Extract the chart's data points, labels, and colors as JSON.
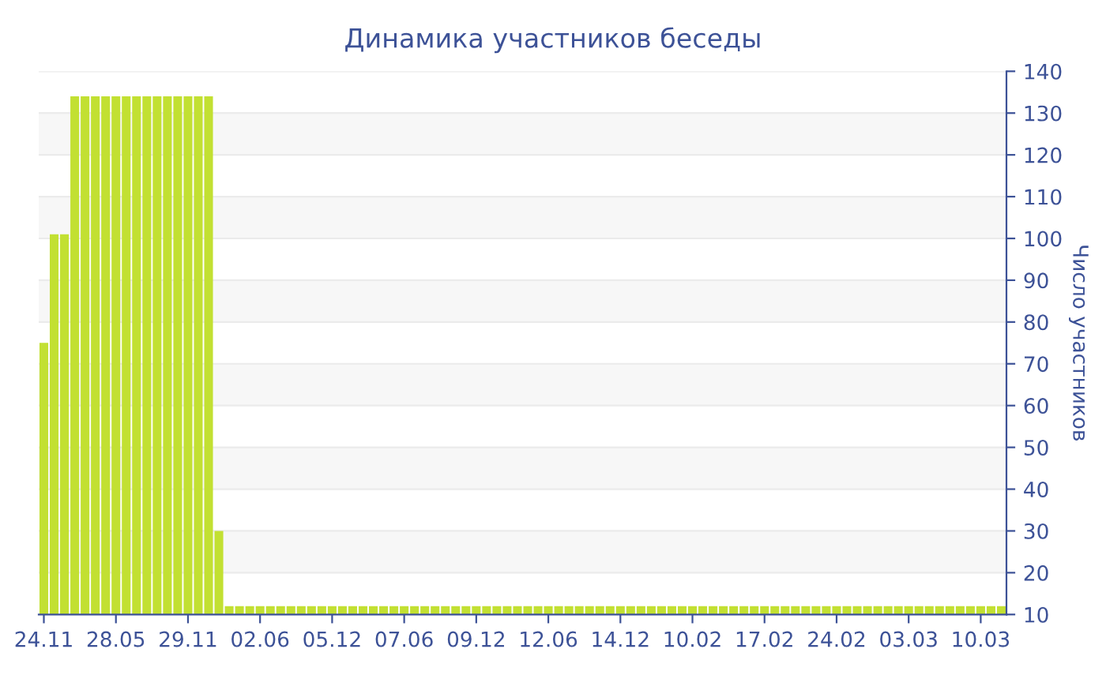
{
  "chart_data": {
    "type": "bar",
    "title": "Динамика участников беседы",
    "ylabel": "Число участников",
    "color": "#c2e032",
    "categories": [
      "24.11",
      null,
      null,
      null,
      null,
      null,
      null,
      "28.05",
      null,
      null,
      null,
      null,
      null,
      null,
      "29.11",
      null,
      null,
      null,
      null,
      null,
      null,
      "02.06",
      null,
      null,
      null,
      null,
      null,
      null,
      "05.12",
      null,
      null,
      null,
      null,
      null,
      null,
      "07.06",
      null,
      null,
      null,
      null,
      null,
      null,
      "09.12",
      null,
      null,
      null,
      null,
      null,
      null,
      "12.06",
      null,
      null,
      null,
      null,
      null,
      null,
      "14.12",
      null,
      null,
      null,
      null,
      null,
      null,
      "10.02",
      null,
      null,
      null,
      null,
      null,
      null,
      "17.02",
      null,
      null,
      null,
      null,
      null,
      null,
      "24.02",
      null,
      null,
      null,
      null,
      null,
      null,
      "03.03",
      null,
      null,
      null,
      null,
      null,
      null,
      "10.03",
      null,
      null
    ],
    "values": [
      75,
      101,
      101,
      134,
      134,
      134,
      134,
      134,
      134,
      134,
      134,
      134,
      134,
      134,
      134,
      134,
      134,
      30,
      12,
      12,
      12,
      12,
      12,
      12,
      12,
      12,
      12,
      12,
      12,
      12,
      12,
      12,
      12,
      12,
      12,
      12,
      12,
      12,
      12,
      12,
      12,
      12,
      12,
      12,
      12,
      12,
      12,
      12,
      12,
      12,
      12,
      12,
      12,
      12,
      12,
      12,
      12,
      12,
      12,
      12,
      12,
      12,
      12,
      12,
      12,
      12,
      12,
      12,
      12,
      12,
      12,
      12,
      12,
      12,
      12,
      12,
      12,
      12,
      12,
      12,
      12,
      12,
      12,
      12,
      12,
      12,
      12,
      12,
      12,
      12,
      12,
      12,
      12,
      12
    ],
    "ylim": [
      10,
      140
    ],
    "yticks": [
      10,
      20,
      30,
      40,
      50,
      60,
      70,
      80,
      90,
      100,
      110,
      120,
      130,
      140
    ],
    "grid": "y"
  }
}
